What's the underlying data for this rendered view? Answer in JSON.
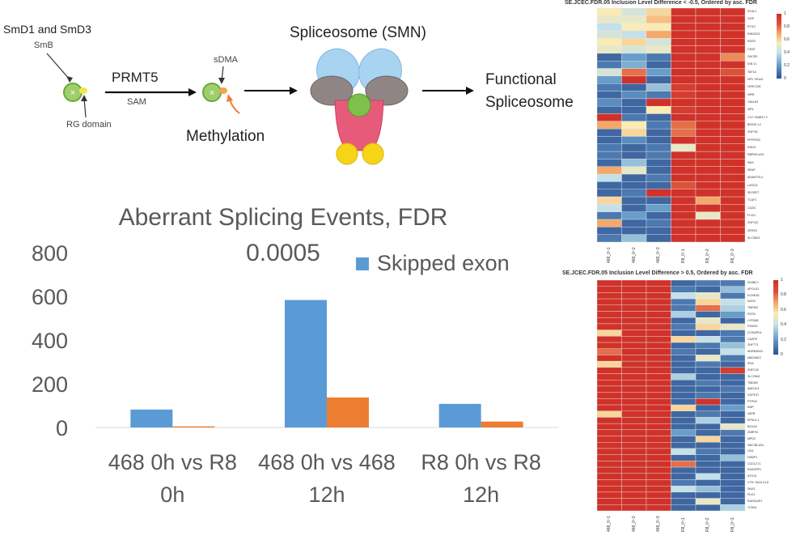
{
  "diagram": {
    "smd_label": "SmD1 and SmD3",
    "smb_label": "SmB",
    "rg_label": "RG domain",
    "prmt5_label": "PRMT5",
    "sam_label": "SAM",
    "sdma_label": "sDMA",
    "methylation_label": "Methylation",
    "spliceosome_label": "Spliceosome (SMN)",
    "functional_label_1": "Functional",
    "functional_label_2": "Spliceosome"
  },
  "chart_data": [
    {
      "type": "bar",
      "title": "Aberrant Splicing Events, FDR 0.0005",
      "categories": [
        [
          "468 0h vs R8",
          "0h"
        ],
        [
          "468 0h vs 468",
          "12h"
        ],
        [
          "R8 0h vs R8",
          "12h"
        ]
      ],
      "series": [
        {
          "name": "Skipped exon",
          "values": [
            82,
            583,
            108
          ],
          "color": "#5b9bd5"
        },
        {
          "name": "",
          "values": [
            5,
            137,
            27
          ],
          "color": "#ed7d31"
        }
      ],
      "yticks": [
        "0",
        "200",
        "400",
        "600",
        "800"
      ],
      "ylim": [
        0,
        800
      ],
      "grid": false,
      "legend": "top-right"
    },
    {
      "type": "heatmap",
      "title": "SE.JCEC.FDR.05 Inclusion Level Difference < -0.5, Ordered by asc. FDR",
      "columns": [
        "468_0~1",
        "468_0~2",
        "468_0~3",
        "R8_0~1",
        "R8_0~2",
        "R8_0~3"
      ],
      "rows": [
        "SCAL1",
        "XIAP",
        "KTI1C",
        "RINGD21",
        "RGS3",
        "CRAT",
        "DDCR2",
        "IGN 11",
        "TAF1A",
        "NP1~391A1",
        "LRRC1D8",
        "NIPB",
        "CBx1K3",
        "WRL",
        "C12~20AB17.3",
        "BRSAT-L2",
        "ZNF781",
        "PPP2R3C",
        "IDNX1",
        "RBPMS-AS1",
        "SMX",
        "SRAP",
        "ADAMTSL3",
        "LASX11",
        "SKOR2T",
        "TCAF1",
        "CD2IC",
        "FL421",
        "ZNF133",
        "ZER1N",
        "SLC35D1"
      ],
      "values": [
        [
          0.55,
          0.45,
          0.6,
          1,
          1,
          1
        ],
        [
          0.5,
          0.5,
          0.65,
          1,
          1,
          1
        ],
        [
          0.4,
          0.55,
          0.55,
          1,
          1,
          1
        ],
        [
          0.45,
          0.4,
          0.7,
          1,
          1,
          1
        ],
        [
          0.55,
          0.6,
          0.45,
          1,
          1,
          1
        ],
        [
          0.5,
          0.45,
          0.5,
          1,
          1,
          1
        ],
        [
          0.05,
          0.2,
          0.1,
          1,
          1,
          0.75
        ],
        [
          0.1,
          0.25,
          0.05,
          1,
          1,
          1
        ],
        [
          0.45,
          0.8,
          0.2,
          1,
          1,
          0.85
        ],
        [
          0.2,
          1,
          0.05,
          1,
          1,
          1
        ],
        [
          0.1,
          0.05,
          0.3,
          0.95,
          1,
          1
        ],
        [
          0.05,
          0.15,
          0.1,
          0.95,
          1,
          1
        ],
        [
          0.15,
          0.05,
          1,
          1,
          1,
          1
        ],
        [
          0.05,
          0.05,
          0.55,
          0.95,
          1,
          1
        ],
        [
          1,
          0.1,
          0.05,
          1,
          1,
          1
        ],
        [
          0.7,
          0.55,
          0.1,
          0.8,
          1,
          1
        ],
        [
          0.05,
          0.6,
          0.05,
          0.8,
          1,
          1
        ],
        [
          0.05,
          0.15,
          0.05,
          1,
          1,
          1
        ],
        [
          0.1,
          0.05,
          0.1,
          0.5,
          1,
          1
        ],
        [
          0.1,
          0.05,
          0.1,
          1,
          1,
          1
        ],
        [
          0.05,
          0.3,
          0.05,
          1,
          1,
          1
        ],
        [
          0.7,
          0.5,
          0.05,
          1,
          1,
          1
        ],
        [
          0.4,
          0.05,
          0.1,
          1,
          1,
          1
        ],
        [
          0.05,
          0.05,
          0.05,
          0.85,
          1,
          1
        ],
        [
          0.05,
          0.1,
          1,
          1,
          1,
          1
        ],
        [
          0.6,
          0.05,
          0.05,
          1,
          0.7,
          1
        ],
        [
          0.4,
          0.05,
          0.2,
          1,
          1,
          1
        ],
        [
          0.1,
          0.2,
          0.05,
          1,
          0.5,
          1
        ],
        [
          0.7,
          0.05,
          0.1,
          1,
          1,
          1
        ],
        [
          0.05,
          0.05,
          0.05,
          1,
          1,
          1
        ],
        [
          0.1,
          0.3,
          0.05,
          1,
          1,
          1
        ]
      ],
      "colorbar_ticks": [
        "1",
        "0.8",
        "0.6",
        "0.4",
        "0.2",
        "0"
      ]
    },
    {
      "type": "heatmap",
      "title": "SE.JCEC.FDR.05 Inclusion Level Difference > 0.5, Ordered by asc. FDR",
      "columns": [
        "468_0~1",
        "468_0~2",
        "468_0~3",
        "R8_0~1",
        "R8_0~2",
        "R8_0~3"
      ],
      "rows": [
        "SH3BC1",
        "APOLD1",
        "KCNK3D",
        "NGS3",
        "TMEM9",
        "RGS3",
        "LYPD6B",
        "PSMC6",
        "ZCSWPD1",
        "CASP8",
        "ZNF773",
        "ADRB3AS4",
        "MAD3AK2",
        "IP3A",
        "ZNFC18",
        "SLC25A3",
        "TMEM9",
        "AMD1D1",
        "VOPK3T",
        "PTPN3",
        "EMP",
        "VAPB",
        "EPSL5.1",
        "BCKA4",
        "ZNRFM",
        "MPD2",
        "SMC3B-AS1",
        "LSI3",
        "NSMP1",
        "CCDC171",
        "RASGRP1",
        "ATG13",
        "CTD~3A15.13.8",
        "SNX3",
        "PLD3",
        "RAD51AP1",
        "TCRA1"
      ],
      "values": [
        [
          1,
          1,
          1,
          0.05,
          0.1,
          0.1
        ],
        [
          1,
          1,
          1,
          0.1,
          0.05,
          0.3
        ],
        [
          1,
          1,
          1,
          0.4,
          0.5,
          0.1
        ],
        [
          1,
          1,
          1,
          0.1,
          0.6,
          0.4
        ],
        [
          1,
          1,
          1,
          0.1,
          0.8,
          0.35
        ],
        [
          1,
          1,
          1,
          0.35,
          0.05,
          0.2
        ],
        [
          1,
          1,
          1,
          0.05,
          0.5,
          0.05
        ],
        [
          1,
          1,
          1,
          0.1,
          0.6,
          0.5
        ],
        [
          0.6,
          1,
          1,
          0.05,
          0.05,
          0.1
        ],
        [
          1,
          1,
          1,
          0.6,
          0.4,
          0.1
        ],
        [
          1,
          1,
          1,
          0.05,
          0.1,
          0.3
        ],
        [
          0.8,
          1,
          1,
          0.1,
          0.05,
          0.4
        ],
        [
          1,
          1,
          1,
          0.05,
          0.5,
          0.1
        ],
        [
          0.6,
          1,
          1,
          0.05,
          0.1,
          0.05
        ],
        [
          1,
          1,
          1,
          0.05,
          0.05,
          0.95
        ],
        [
          1,
          1,
          1,
          0.35,
          0.05,
          0.05
        ],
        [
          1,
          1,
          1,
          0.05,
          0.1,
          0.05
        ],
        [
          1,
          1,
          1,
          0.05,
          0.05,
          0.1
        ],
        [
          1,
          1,
          1,
          0.05,
          0.1,
          0.05
        ],
        [
          1,
          1,
          1,
          0.05,
          1,
          0.05
        ],
        [
          1,
          1,
          1,
          0.6,
          0.05,
          0.2
        ],
        [
          0.6,
          1,
          1,
          0.05,
          0.1,
          0.05
        ],
        [
          1,
          1,
          1,
          0.05,
          0.35,
          0.05
        ],
        [
          1,
          1,
          1,
          0.05,
          0.05,
          0.5
        ],
        [
          1,
          1,
          1,
          0.2,
          0.05,
          0.1
        ],
        [
          1,
          1,
          1,
          0.05,
          0.6,
          0.05
        ],
        [
          1,
          1,
          1,
          0.05,
          0.05,
          0.05
        ],
        [
          1,
          1,
          1,
          0.4,
          0.1,
          0.05
        ],
        [
          1,
          1,
          1,
          0.05,
          0.05,
          0.3
        ],
        [
          1,
          1,
          1,
          0.8,
          0.05,
          0.05
        ],
        [
          1,
          1,
          1,
          0.05,
          0.05,
          0.05
        ],
        [
          1,
          1,
          1,
          0.05,
          0.4,
          0.05
        ],
        [
          1,
          1,
          1,
          0.1,
          0.05,
          0.05
        ],
        [
          1,
          1,
          1,
          0.4,
          0.3,
          0.05
        ],
        [
          1,
          1,
          1,
          0.05,
          0.05,
          0.05
        ],
        [
          1,
          1,
          1,
          0.05,
          0.5,
          0.05
        ],
        [
          1,
          1,
          1,
          0.05,
          0.05,
          0.35
        ]
      ],
      "colorbar_ticks": [
        "1",
        "0.8",
        "0.6",
        "0.4",
        "0.2",
        "0"
      ]
    }
  ]
}
